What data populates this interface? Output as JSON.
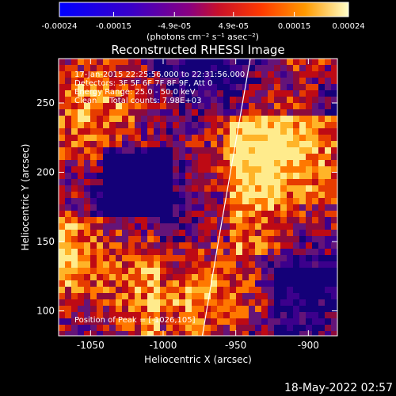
{
  "chart_data": {
    "type": "heatmap",
    "title": "Reconstructed RHESSI Image",
    "xlabel": "Heliocentric X (arcsec)",
    "ylabel": "Heliocentric Y (arcsec)",
    "xlim": [
      -1072,
      -880
    ],
    "ylim": [
      82,
      282
    ],
    "xticks": [
      -1050,
      -1000,
      -950,
      -900
    ],
    "yticks": [
      100,
      150,
      200,
      250
    ],
    "colorbar": {
      "ticks": [
        "-0.00024",
        "-0.00015",
        "-4.9e-05",
        "4.9e-05",
        "0.00015",
        "0.00024"
      ],
      "units": "(photons cm⁻² s⁻¹ asec⁻²)",
      "range": [
        -0.00024,
        0.00024
      ]
    },
    "annotations": [
      "17-Jan-2015 22:25:56.000 to 22:31:56.000",
      "Detectors: 3F 5F 6F 7F 8F 9F, Att 0",
      "Energy Range: 25.0 - 50.0 keV",
      "Clean     Total counts: 7.98E+03"
    ],
    "position_label": "Position of Peak = [-1026,105]",
    "limb_curve": [
      [
        -973,
        82
      ],
      [
        -962,
        150
      ],
      [
        -952,
        210
      ],
      [
        -940,
        282
      ]
    ],
    "grid": false
  },
  "footer_timestamp": "18-May-2022 02:57"
}
